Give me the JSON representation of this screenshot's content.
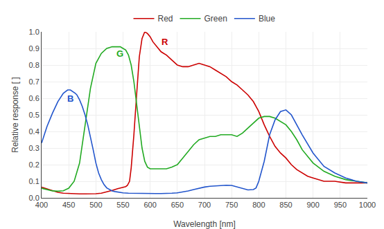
{
  "chart_data": {
    "type": "line",
    "xlabel": "Wavelength [nm]",
    "ylabel": "Relative response [ ]",
    "xlim": [
      400,
      1000
    ],
    "ylim": [
      0.0,
      1.0
    ],
    "xticks": [
      400,
      450,
      500,
      550,
      600,
      650,
      700,
      750,
      800,
      850,
      900,
      950,
      1000
    ],
    "yticks": [
      {
        "value": 0.0,
        "label": "0.0"
      },
      0.1,
      0.2,
      0.3,
      0.4,
      0.5,
      0.6,
      0.7,
      0.8,
      0.9,
      {
        "value": 1.0,
        "label": "1.0"
      }
    ],
    "grid": true,
    "legend": "top",
    "annotations": [
      {
        "text": "R",
        "x": 618,
        "y": 0.9,
        "color": "#cc0000"
      },
      {
        "text": "G",
        "x": 535,
        "y": 0.83,
        "color": "#22aa22"
      },
      {
        "text": "B",
        "x": 445,
        "y": 0.56,
        "color": "#2255cc"
      }
    ],
    "series": [
      {
        "name": "Red",
        "color": "#cc0000",
        "x": [
          400,
          405,
          410,
          420,
          430,
          440,
          450,
          460,
          470,
          480,
          490,
          500,
          510,
          520,
          530,
          540,
          550,
          555,
          558,
          562,
          565,
          570,
          575,
          580,
          585,
          590,
          595,
          600,
          605,
          610,
          615,
          620,
          625,
          630,
          640,
          650,
          660,
          670,
          680,
          690,
          700,
          710,
          720,
          730,
          740,
          750,
          755,
          760,
          770,
          780,
          790,
          800,
          810,
          820,
          830,
          840,
          850,
          860,
          870,
          880,
          890,
          900,
          920,
          940,
          960,
          980,
          1000
        ],
        "values": [
          0.065,
          0.06,
          0.055,
          0.042,
          0.033,
          0.028,
          0.026,
          0.025,
          0.024,
          0.024,
          0.024,
          0.025,
          0.028,
          0.035,
          0.045,
          0.055,
          0.062,
          0.068,
          0.075,
          0.1,
          0.18,
          0.38,
          0.62,
          0.85,
          0.96,
          1.0,
          0.99,
          0.97,
          0.94,
          0.92,
          0.9,
          0.88,
          0.87,
          0.86,
          0.83,
          0.8,
          0.79,
          0.79,
          0.8,
          0.81,
          0.8,
          0.79,
          0.77,
          0.75,
          0.73,
          0.7,
          0.69,
          0.68,
          0.65,
          0.62,
          0.58,
          0.52,
          0.44,
          0.37,
          0.31,
          0.27,
          0.24,
          0.2,
          0.17,
          0.15,
          0.13,
          0.12,
          0.1,
          0.1,
          0.09,
          0.09,
          0.09
        ]
      },
      {
        "name": "Green",
        "color": "#22aa22",
        "x": [
          400,
          410,
          420,
          430,
          440,
          450,
          460,
          470,
          480,
          490,
          500,
          510,
          520,
          530,
          535,
          540,
          545,
          550,
          555,
          560,
          565,
          570,
          575,
          580,
          585,
          590,
          595,
          600,
          610,
          620,
          630,
          640,
          650,
          660,
          670,
          680,
          690,
          700,
          710,
          720,
          730,
          740,
          750,
          760,
          770,
          780,
          790,
          800,
          810,
          820,
          830,
          840,
          850,
          860,
          870,
          880,
          900,
          920,
          940,
          960,
          980,
          1000
        ],
        "values": [
          0.058,
          0.05,
          0.042,
          0.04,
          0.043,
          0.058,
          0.1,
          0.21,
          0.43,
          0.66,
          0.81,
          0.87,
          0.9,
          0.91,
          0.91,
          0.91,
          0.91,
          0.9,
          0.89,
          0.86,
          0.8,
          0.7,
          0.57,
          0.42,
          0.3,
          0.22,
          0.185,
          0.175,
          0.175,
          0.175,
          0.175,
          0.185,
          0.2,
          0.24,
          0.28,
          0.32,
          0.35,
          0.36,
          0.37,
          0.37,
          0.38,
          0.38,
          0.38,
          0.37,
          0.39,
          0.42,
          0.45,
          0.48,
          0.49,
          0.49,
          0.48,
          0.46,
          0.44,
          0.4,
          0.35,
          0.29,
          0.21,
          0.16,
          0.13,
          0.11,
          0.1,
          0.09
        ]
      },
      {
        "name": "Blue",
        "color": "#2255cc",
        "x": [
          400,
          410,
          420,
          430,
          440,
          448,
          453,
          458,
          462,
          465,
          470,
          475,
          480,
          485,
          490,
          495,
          500,
          505,
          510,
          515,
          520,
          525,
          530,
          535,
          540,
          545,
          550,
          560,
          570,
          580,
          590,
          600,
          610,
          620,
          630,
          640,
          650,
          660,
          670,
          680,
          690,
          700,
          710,
          720,
          730,
          740,
          750,
          760,
          770,
          780,
          790,
          795,
          800,
          810,
          820,
          830,
          840,
          850,
          860,
          870,
          880,
          900,
          920,
          940,
          960,
          980,
          1000
        ],
        "values": [
          0.33,
          0.43,
          0.51,
          0.58,
          0.63,
          0.65,
          0.65,
          0.64,
          0.63,
          0.62,
          0.59,
          0.55,
          0.5,
          0.44,
          0.37,
          0.29,
          0.21,
          0.15,
          0.11,
          0.08,
          0.06,
          0.05,
          0.042,
          0.038,
          0.035,
          0.033,
          0.03,
          0.028,
          0.027,
          0.026,
          0.026,
          0.026,
          0.026,
          0.026,
          0.026,
          0.028,
          0.03,
          0.035,
          0.042,
          0.05,
          0.058,
          0.065,
          0.07,
          0.072,
          0.075,
          0.076,
          0.075,
          0.065,
          0.055,
          0.048,
          0.05,
          0.06,
          0.1,
          0.22,
          0.38,
          0.47,
          0.52,
          0.53,
          0.5,
          0.44,
          0.38,
          0.27,
          0.19,
          0.15,
          0.12,
          0.1,
          0.09
        ]
      }
    ]
  }
}
